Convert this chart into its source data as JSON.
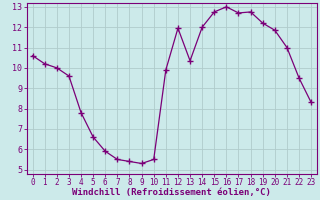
{
  "x": [
    0,
    1,
    2,
    3,
    4,
    5,
    6,
    7,
    8,
    9,
    10,
    11,
    12,
    13,
    14,
    15,
    16,
    17,
    18,
    19,
    20,
    21,
    22,
    23
  ],
  "y": [
    10.6,
    10.2,
    10.0,
    9.6,
    7.8,
    6.6,
    5.9,
    5.5,
    5.4,
    5.3,
    5.5,
    9.9,
    11.95,
    10.35,
    12.0,
    12.75,
    13.0,
    12.7,
    12.75,
    12.2,
    11.85,
    11.0,
    9.5,
    8.3
  ],
  "line_color": "#7b0078",
  "marker": "+",
  "marker_size": 4,
  "bg_color": "#cceaea",
  "grid_color": "#b0cccc",
  "xlabel": "Windchill (Refroidissement éolien,°C)",
  "xlabel_color": "#7b0078",
  "tick_color": "#7b0078",
  "spine_color": "#7b0078",
  "ylim": [
    4.8,
    13.2
  ],
  "xlim": [
    -0.5,
    23.5
  ],
  "yticks": [
    5,
    6,
    7,
    8,
    9,
    10,
    11,
    12,
    13
  ],
  "xticks": [
    0,
    1,
    2,
    3,
    4,
    5,
    6,
    7,
    8,
    9,
    10,
    11,
    12,
    13,
    14,
    15,
    16,
    17,
    18,
    19,
    20,
    21,
    22,
    23
  ],
  "tick_fontsize": 5.5,
  "xlabel_fontsize": 6.5,
  "linewidth": 0.9
}
